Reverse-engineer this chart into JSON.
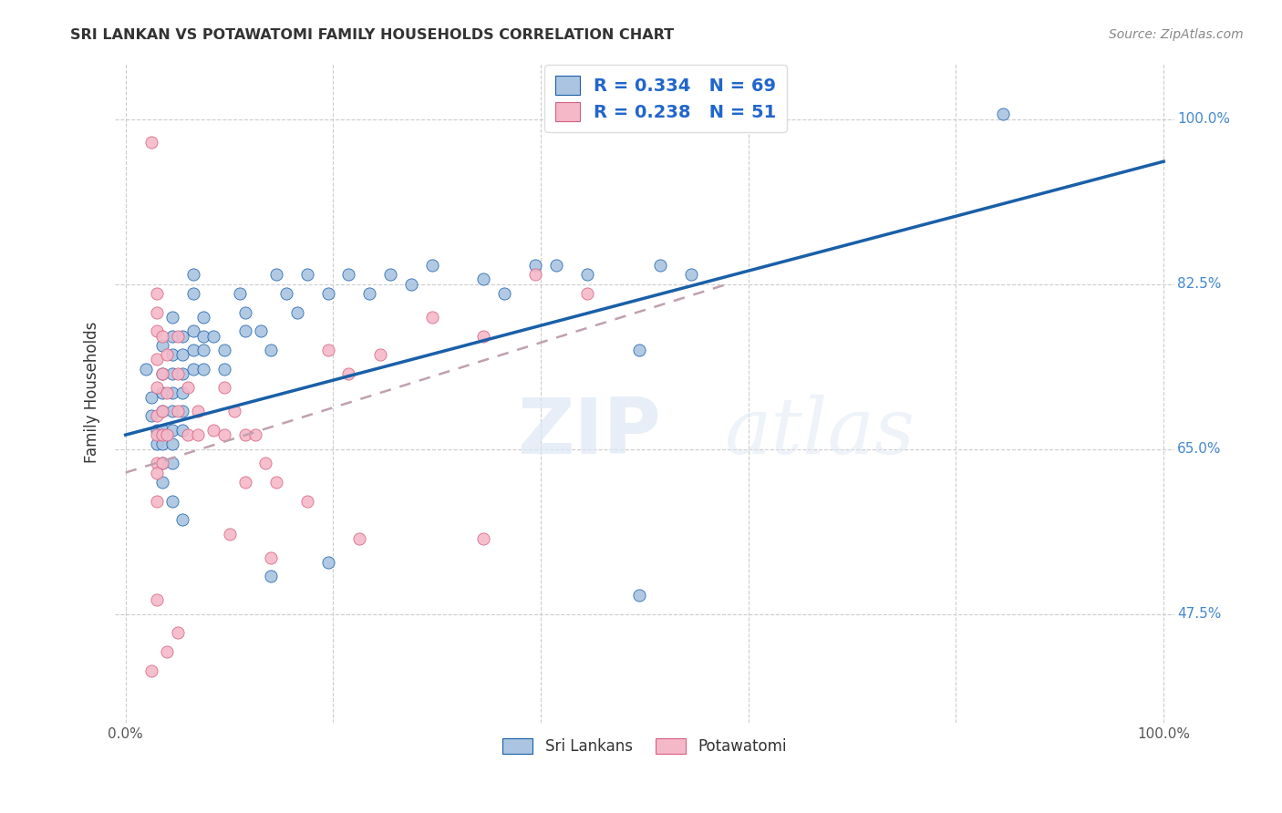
{
  "title": "SRI LANKAN VS POTAWATOMI FAMILY HOUSEHOLDS CORRELATION CHART",
  "source": "Source: ZipAtlas.com",
  "ylabel": "Family Households",
  "y_ticks": [
    "47.5%",
    "65.0%",
    "82.5%",
    "100.0%"
  ],
  "y_tick_vals": [
    0.475,
    0.65,
    0.825,
    1.0
  ],
  "x_tick_vals": [
    0.0,
    0.2,
    0.4,
    0.6,
    0.8,
    1.0
  ],
  "xlim": [
    -0.01,
    1.01
  ],
  "ylim": [
    0.36,
    1.06
  ],
  "blue_R": 0.334,
  "blue_N": 69,
  "pink_R": 0.238,
  "pink_N": 51,
  "blue_color": "#aac4e2",
  "pink_color": "#f5b8c8",
  "blue_line_color": "#1a5fa8",
  "pink_line_color": "#d46080",
  "blue_scatter": [
    [
      0.02,
      0.735
    ],
    [
      0.025,
      0.685
    ],
    [
      0.025,
      0.705
    ],
    [
      0.03,
      0.67
    ],
    [
      0.03,
      0.655
    ],
    [
      0.035,
      0.76
    ],
    [
      0.035,
      0.73
    ],
    [
      0.035,
      0.71
    ],
    [
      0.035,
      0.69
    ],
    [
      0.035,
      0.67
    ],
    [
      0.035,
      0.655
    ],
    [
      0.035,
      0.635
    ],
    [
      0.045,
      0.79
    ],
    [
      0.045,
      0.77
    ],
    [
      0.045,
      0.75
    ],
    [
      0.045,
      0.73
    ],
    [
      0.045,
      0.71
    ],
    [
      0.045,
      0.69
    ],
    [
      0.045,
      0.67
    ],
    [
      0.045,
      0.655
    ],
    [
      0.045,
      0.635
    ],
    [
      0.055,
      0.77
    ],
    [
      0.055,
      0.75
    ],
    [
      0.055,
      0.73
    ],
    [
      0.055,
      0.71
    ],
    [
      0.055,
      0.69
    ],
    [
      0.055,
      0.67
    ],
    [
      0.065,
      0.835
    ],
    [
      0.065,
      0.815
    ],
    [
      0.065,
      0.775
    ],
    [
      0.065,
      0.755
    ],
    [
      0.065,
      0.735
    ],
    [
      0.075,
      0.79
    ],
    [
      0.075,
      0.77
    ],
    [
      0.075,
      0.755
    ],
    [
      0.075,
      0.735
    ],
    [
      0.085,
      0.77
    ],
    [
      0.095,
      0.755
    ],
    [
      0.095,
      0.735
    ],
    [
      0.11,
      0.815
    ],
    [
      0.115,
      0.795
    ],
    [
      0.115,
      0.775
    ],
    [
      0.13,
      0.775
    ],
    [
      0.14,
      0.755
    ],
    [
      0.145,
      0.835
    ],
    [
      0.155,
      0.815
    ],
    [
      0.165,
      0.795
    ],
    [
      0.175,
      0.835
    ],
    [
      0.195,
      0.815
    ],
    [
      0.215,
      0.835
    ],
    [
      0.235,
      0.815
    ],
    [
      0.255,
      0.835
    ],
    [
      0.275,
      0.825
    ],
    [
      0.295,
      0.845
    ],
    [
      0.345,
      0.83
    ],
    [
      0.365,
      0.815
    ],
    [
      0.395,
      0.845
    ],
    [
      0.415,
      0.845
    ],
    [
      0.445,
      0.835
    ],
    [
      0.495,
      0.755
    ],
    [
      0.515,
      0.845
    ],
    [
      0.545,
      0.835
    ],
    [
      0.14,
      0.515
    ],
    [
      0.195,
      0.53
    ],
    [
      0.495,
      0.495
    ],
    [
      0.845,
      1.005
    ],
    [
      0.035,
      0.615
    ],
    [
      0.045,
      0.595
    ],
    [
      0.055,
      0.575
    ]
  ],
  "pink_scatter": [
    [
      0.025,
      0.975
    ],
    [
      0.03,
      0.815
    ],
    [
      0.03,
      0.795
    ],
    [
      0.03,
      0.775
    ],
    [
      0.03,
      0.745
    ],
    [
      0.03,
      0.715
    ],
    [
      0.03,
      0.685
    ],
    [
      0.03,
      0.665
    ],
    [
      0.03,
      0.635
    ],
    [
      0.03,
      0.595
    ],
    [
      0.035,
      0.77
    ],
    [
      0.035,
      0.73
    ],
    [
      0.035,
      0.69
    ],
    [
      0.035,
      0.665
    ],
    [
      0.035,
      0.635
    ],
    [
      0.04,
      0.75
    ],
    [
      0.04,
      0.71
    ],
    [
      0.04,
      0.665
    ],
    [
      0.05,
      0.77
    ],
    [
      0.05,
      0.73
    ],
    [
      0.05,
      0.69
    ],
    [
      0.06,
      0.715
    ],
    [
      0.06,
      0.665
    ],
    [
      0.07,
      0.69
    ],
    [
      0.07,
      0.665
    ],
    [
      0.085,
      0.67
    ],
    [
      0.095,
      0.715
    ],
    [
      0.095,
      0.665
    ],
    [
      0.105,
      0.69
    ],
    [
      0.115,
      0.665
    ],
    [
      0.115,
      0.615
    ],
    [
      0.125,
      0.665
    ],
    [
      0.135,
      0.635
    ],
    [
      0.145,
      0.615
    ],
    [
      0.175,
      0.595
    ],
    [
      0.195,
      0.755
    ],
    [
      0.215,
      0.73
    ],
    [
      0.245,
      0.75
    ],
    [
      0.295,
      0.79
    ],
    [
      0.345,
      0.77
    ],
    [
      0.395,
      0.835
    ],
    [
      0.445,
      0.815
    ],
    [
      0.1,
      0.56
    ],
    [
      0.14,
      0.535
    ],
    [
      0.225,
      0.555
    ],
    [
      0.04,
      0.435
    ],
    [
      0.05,
      0.455
    ],
    [
      0.345,
      0.555
    ],
    [
      0.03,
      0.49
    ],
    [
      0.025,
      0.415
    ],
    [
      0.03,
      0.625
    ]
  ],
  "blue_line_x": [
    0.0,
    1.0
  ],
  "blue_line_y": [
    0.665,
    0.955
  ],
  "pink_line_x": [
    0.0,
    0.58
  ],
  "pink_line_y": [
    0.625,
    0.825
  ],
  "watermark_zip": "ZIP",
  "watermark_atlas": "atlas",
  "legend_label_blue": "Sri Lankans",
  "legend_label_pink": "Potawatomi",
  "background_color": "#ffffff",
  "grid_color": "#cccccc",
  "title_color": "#333333",
  "right_tick_color": "#4488cc",
  "bottom_tick_color": "#555555",
  "source_color": "#888888",
  "legend_text_color": "#2266cc"
}
